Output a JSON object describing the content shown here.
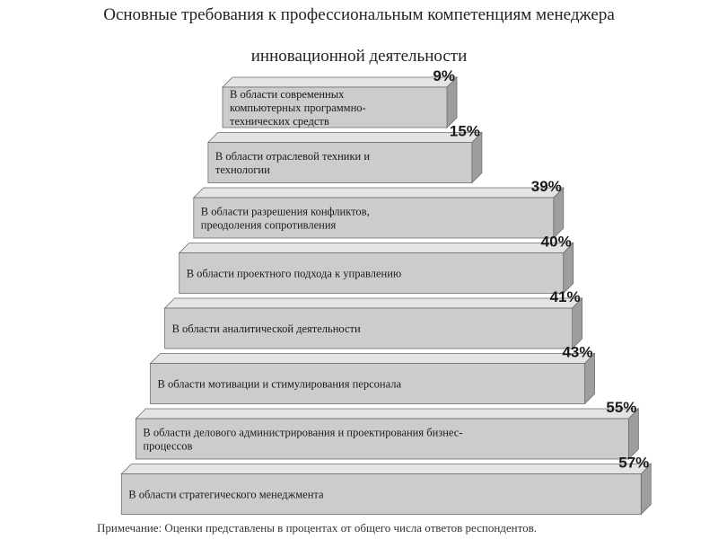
{
  "title_line1": "Основные требования к профессиональным компетенциям менеджера",
  "title_line2": "инновационной деятельности",
  "note": "Примечание: Оценки представлены в процентах от общего числа ответов респондентов.",
  "colors": {
    "bar_front": "#cccccc",
    "bar_top": "#e4e4e4",
    "bar_side": "#9e9e9e",
    "bar_edge": "#6e6e6e"
  },
  "chart_data": {
    "type": "bar",
    "orientation": "horizontal-stacked-pyramid",
    "categories": [
      "В области современных компьютерных программно-технических средств",
      "В области отраслевой техники и технологии",
      "В области разрешения конфликтов, преодоления сопротивления",
      "В области проектного подхода к управлению",
      "В области аналитической деятельности",
      "В области мотивации и стимулирования персонала",
      "В области делового администрирования и проектирования бизнес-процессов",
      "В области стратегического менеджмента"
    ],
    "category_lines": [
      [
        "В области современных",
        "компьютерных программно-",
        "технических средств"
      ],
      [
        "В области отраслевой техники и",
        "технологии"
      ],
      [
        "В области разрешения конфликтов,",
        "преодоления сопротивления"
      ],
      [
        "В области проектного подхода к управлению"
      ],
      [
        "В области аналитической деятельности"
      ],
      [
        "В области мотивации и стимулирования персонала"
      ],
      [
        "В области делового администрирования и проектирования бизнес-",
        "процессов"
      ],
      [
        "В области стратегического менеджмента"
      ]
    ],
    "values": [
      9,
      15,
      39,
      40,
      41,
      43,
      55,
      57
    ],
    "value_labels": [
      "9%",
      "15%",
      "39%",
      "40%",
      "41%",
      "43%",
      "55%",
      "57%"
    ],
    "unit": "%",
    "xlabel": "",
    "ylabel": ""
  }
}
